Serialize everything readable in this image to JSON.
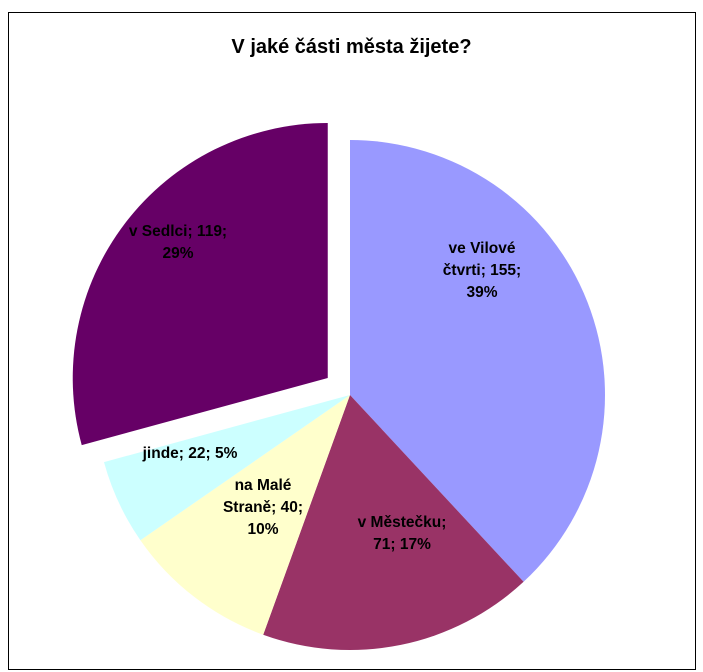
{
  "chart_data": {
    "type": "pie",
    "title": "V jaké části města žijete?",
    "slices": [
      {
        "name": "ve Vilové čtvrti",
        "value": 155,
        "percent": 39,
        "color": "#9999ff",
        "label_lines": [
          "ve Vilové",
          "čtvrti; 155;",
          "39%"
        ]
      },
      {
        "name": "v Městečku",
        "value": 71,
        "percent": 17,
        "color": "#993366",
        "label_lines": [
          "v Městečku;",
          "71; 17%"
        ]
      },
      {
        "name": "na Malé Straně",
        "value": 40,
        "percent": 10,
        "color": "#ffffcc",
        "label_lines": [
          "na Malé",
          "Straně; 40;",
          "10%"
        ]
      },
      {
        "name": "jinde",
        "value": 22,
        "percent": 5,
        "color": "#ccffff",
        "label_lines": [
          "jinde; 22; 5%"
        ]
      },
      {
        "name": "v Sedlci",
        "value": 119,
        "percent": 29,
        "color": "#660066",
        "exploded": true,
        "label_lines": [
          "v Sedlci; 119;",
          "29%"
        ]
      }
    ]
  }
}
